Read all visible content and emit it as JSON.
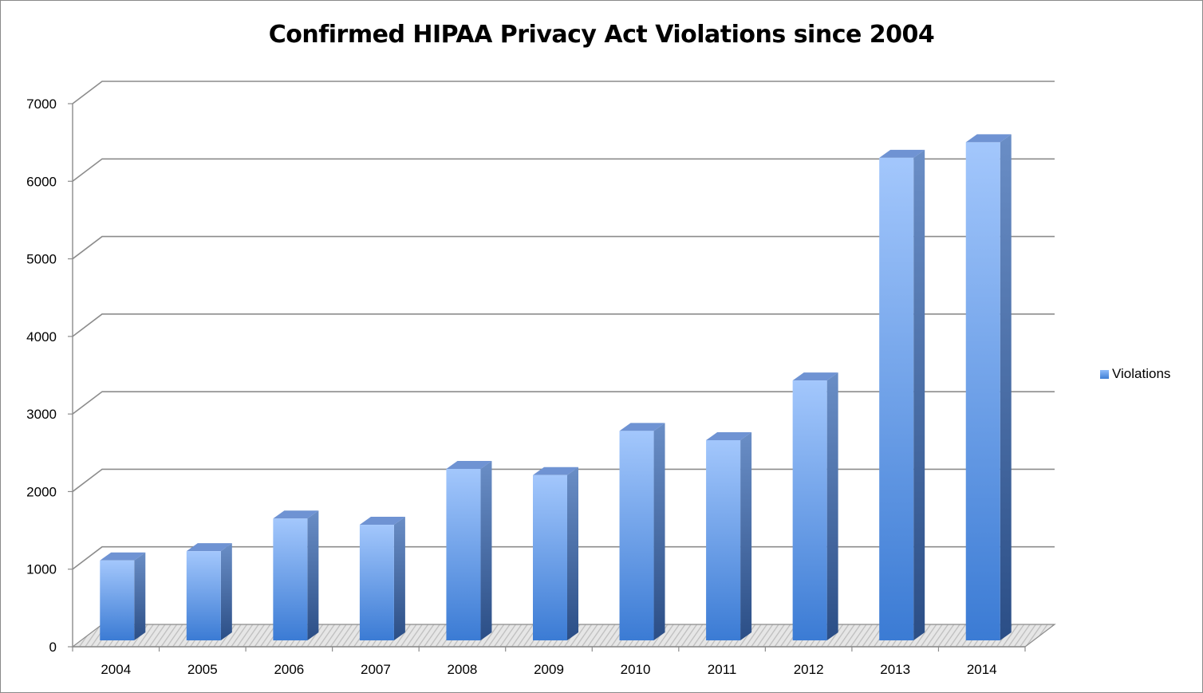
{
  "chart_data": {
    "type": "bar",
    "title": "Confirmed HIPAA Privacy Act Violations since 2004",
    "xlabel": "",
    "ylabel": "",
    "categories": [
      "2004",
      "2005",
      "2006",
      "2007",
      "2008",
      "2009",
      "2010",
      "2011",
      "2012",
      "2013",
      "2014"
    ],
    "series": [
      {
        "name": "Violations",
        "values": [
          1030,
          1150,
          1570,
          1490,
          2210,
          2130,
          2700,
          2580,
          3350,
          6220,
          6420
        ]
      }
    ],
    "ylim": [
      0,
      7000
    ],
    "yticks": [
      "0",
      "1000",
      "2000",
      "3000",
      "4000",
      "5000",
      "6000",
      "7000"
    ],
    "grid": true,
    "legend": "right",
    "style": "3d-column"
  },
  "colors": {
    "bar_front_top": "#a3c7fc",
    "bar_front_bottom": "#3b7bd4",
    "bar_side": "#3a5f9a",
    "bar_top": "#6f93d3",
    "grid": "#8c8c8c",
    "floor": "#d4d4d4"
  }
}
